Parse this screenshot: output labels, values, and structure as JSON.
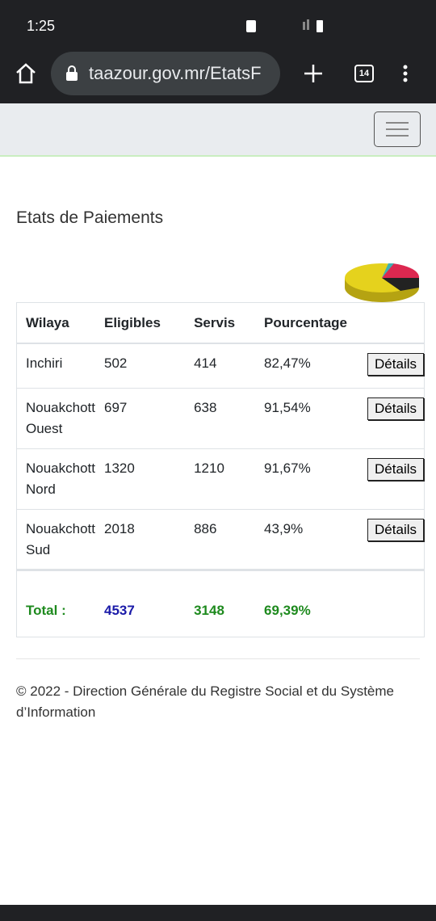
{
  "status_bar": {
    "time": "1:25"
  },
  "browser": {
    "url": "taazour.gov.mr/EtatsF",
    "tab_count": "14"
  },
  "page": {
    "title": "Etats de Paiements",
    "table": {
      "headers": [
        "Wilaya",
        "Eligibles",
        "Servis",
        "Pourcentage"
      ],
      "rows": [
        [
          "Inchiri",
          "502",
          "414",
          "82,47%",
          "Détails"
        ],
        [
          "Nouakchott Ouest",
          "697",
          "638",
          "91,54%",
          "Détails"
        ],
        [
          "Nouakchott Nord",
          "1320",
          "1210",
          "91,67%",
          "Détails"
        ],
        [
          "Nouakchott Sud",
          "2018",
          "886",
          "43,9%",
          "Détails"
        ]
      ],
      "total": [
        "Total :",
        "4537",
        "3148",
        "69,39%"
      ]
    },
    "footer": "© 2022 - Direction Générale du Registre Social et du Système d’Information"
  }
}
